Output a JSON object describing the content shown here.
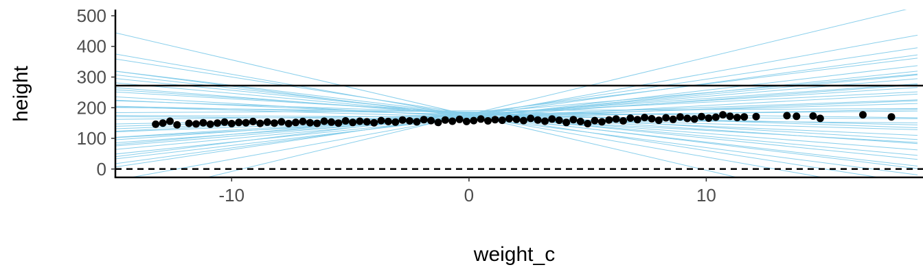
{
  "chart_data": {
    "type": "line",
    "xlabel": "weight_c",
    "ylabel": "height",
    "xlim": [
      -14.9,
      18.9
    ],
    "ylim": [
      -25,
      520
    ],
    "x_ticks": [
      -10,
      0,
      10
    ],
    "x_tick_labels": [
      "-10",
      "0",
      "10"
    ],
    "y_ticks": [
      0,
      100,
      200,
      300,
      400,
      500
    ],
    "y_tick_labels": [
      "0",
      "100",
      "200",
      "300",
      "400",
      "500"
    ],
    "grid": false,
    "legend": "none",
    "reference_lines": [
      {
        "y": 272,
        "style": "solid",
        "color": "#000000"
      },
      {
        "y": 0,
        "style": "dashed",
        "color": "#000000"
      }
    ],
    "prior_lines": {
      "color": "#87ceeb",
      "lines": [
        {
          "intercept": 178,
          "slope": 18.6
        },
        {
          "intercept": 176,
          "slope": -18.0
        },
        {
          "intercept": 172,
          "slope": 14.0
        },
        {
          "intercept": 180,
          "slope": -12.0
        },
        {
          "intercept": 174,
          "slope": 10.5
        },
        {
          "intercept": 170,
          "slope": -10.0
        },
        {
          "intercept": 182,
          "slope": 9.5
        },
        {
          "intercept": 176,
          "slope": -8.8
        },
        {
          "intercept": 168,
          "slope": 8.0
        },
        {
          "intercept": 179,
          "slope": -7.8
        },
        {
          "intercept": 172,
          "slope": 6.5
        },
        {
          "intercept": 176,
          "slope": -6.0
        },
        {
          "intercept": 169,
          "slope": 5.6
        },
        {
          "intercept": 181,
          "slope": -5.2
        },
        {
          "intercept": 175,
          "slope": 4.8
        },
        {
          "intercept": 170,
          "slope": -4.4
        },
        {
          "intercept": 180,
          "slope": 3.8
        },
        {
          "intercept": 174,
          "slope": -3.4
        },
        {
          "intercept": 166,
          "slope": 3.0
        },
        {
          "intercept": 184,
          "slope": -2.6
        },
        {
          "intercept": 172,
          "slope": 2.2
        },
        {
          "intercept": 178,
          "slope": -1.8
        },
        {
          "intercept": 168,
          "slope": 1.4
        },
        {
          "intercept": 186,
          "slope": -1.0
        },
        {
          "intercept": 174,
          "slope": 0.8
        },
        {
          "intercept": 162,
          "slope": -0.6
        },
        {
          "intercept": 190,
          "slope": 0.4
        },
        {
          "intercept": 170,
          "slope": -0.3
        },
        {
          "intercept": 178,
          "slope": 11.5
        },
        {
          "intercept": 174,
          "slope": -13.5
        },
        {
          "intercept": 171,
          "slope": 7.2
        },
        {
          "intercept": 177,
          "slope": -7.0
        },
        {
          "intercept": 165,
          "slope": 4.2
        },
        {
          "intercept": 183,
          "slope": -4.6
        },
        {
          "intercept": 176,
          "slope": 5.4
        },
        {
          "intercept": 170,
          "slope": -2.2
        },
        {
          "intercept": 173,
          "slope": 2.8
        },
        {
          "intercept": 179,
          "slope": -9.4
        },
        {
          "intercept": 167,
          "slope": 9.0
        },
        {
          "intercept": 181,
          "slope": 6.8
        }
      ]
    },
    "points": {
      "color": "#000000",
      "x": [
        -13.2,
        -12.9,
        -12.6,
        -12.3,
        -11.8,
        -11.5,
        -11.2,
        -10.9,
        -10.6,
        -10.3,
        -10.0,
        -9.7,
        -9.4,
        -9.1,
        -8.8,
        -8.5,
        -8.2,
        -7.9,
        -7.6,
        -7.3,
        -7.0,
        -6.7,
        -6.4,
        -6.1,
        -5.8,
        -5.5,
        -5.2,
        -4.9,
        -4.6,
        -4.3,
        -4.0,
        -3.7,
        -3.4,
        -3.1,
        -2.8,
        -2.5,
        -2.2,
        -1.9,
        -1.6,
        -1.3,
        -1.0,
        -0.7,
        -0.4,
        -0.1,
        0.2,
        0.5,
        0.8,
        1.1,
        1.4,
        1.7,
        2.0,
        2.3,
        2.6,
        2.9,
        3.2,
        3.5,
        3.8,
        4.1,
        4.4,
        4.7,
        5.0,
        5.3,
        5.6,
        5.9,
        6.2,
        6.5,
        6.8,
        7.1,
        7.4,
        7.7,
        8.0,
        8.3,
        8.6,
        8.9,
        9.2,
        9.5,
        9.8,
        10.1,
        10.4,
        10.7,
        11.0,
        11.3,
        11.6,
        12.1,
        13.4,
        13.8,
        14.5,
        14.8,
        16.6,
        17.8
      ],
      "y": [
        146,
        150,
        156,
        144,
        149,
        147,
        151,
        146,
        150,
        153,
        148,
        152,
        151,
        155,
        149,
        153,
        150,
        154,
        148,
        152,
        155,
        151,
        149,
        156,
        153,
        150,
        157,
        152,
        156,
        154,
        151,
        158,
        155,
        153,
        160,
        157,
        154,
        161,
        158,
        152,
        160,
        156,
        162,
        155,
        158,
        163,
        157,
        161,
        159,
        164,
        162,
        158,
        165,
        160,
        156,
        163,
        159,
        152,
        161,
        155,
        148,
        158,
        154,
        160,
        163,
        157,
        166,
        161,
        168,
        164,
        159,
        167,
        162,
        170,
        165,
        163,
        171,
        166,
        169,
        177,
        172,
        168,
        170,
        171,
        174,
        172,
        173,
        165,
        177,
        170
      ]
    }
  }
}
